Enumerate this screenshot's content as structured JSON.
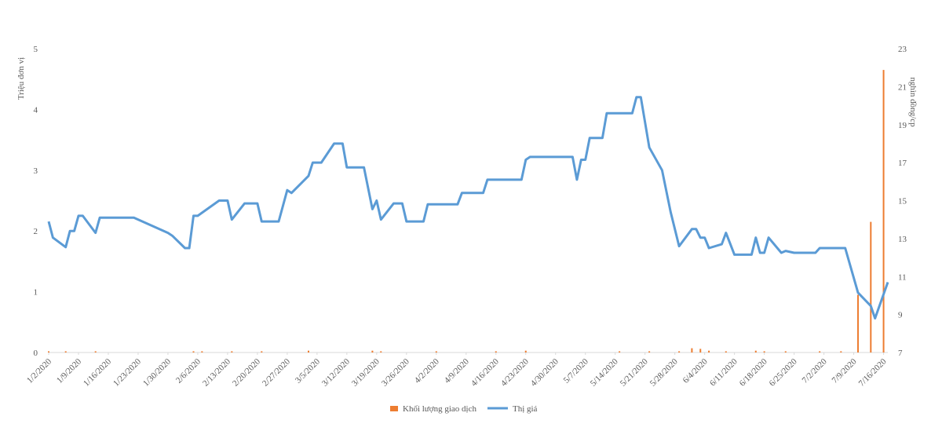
{
  "chart_data": {
    "type": "bar-line",
    "y_label": "Triệu đơn vị",
    "y2_label": "nghìn đồng/cp",
    "xlim": [
      "1/2/2020",
      "7/17/2020"
    ],
    "xticks": [
      "1/2/2020",
      "1/9/2020",
      "1/16/2020",
      "1/23/2020",
      "1/30/2020",
      "2/6/2020",
      "2/13/2020",
      "2/20/2020",
      "2/27/2020",
      "3/5/2020",
      "3/12/2020",
      "3/19/2020",
      "3/26/2020",
      "4/2/2020",
      "4/9/2020",
      "4/16/2020",
      "4/23/2020",
      "4/30/2020",
      "5/7/2020",
      "5/14/2020",
      "5/21/2020",
      "5/28/2020",
      "6/4/2020",
      "6/11/2020",
      "6/18/2020",
      "6/25/2020",
      "7/2/2020",
      "7/9/2020",
      "7/16/2020"
    ],
    "ylim": [
      0,
      5
    ],
    "yticks": [
      0,
      1,
      2,
      3,
      4,
      5
    ],
    "y2lim": [
      7,
      23
    ],
    "y2ticks": [
      7,
      9,
      11,
      13,
      15,
      17,
      19,
      21,
      23
    ],
    "series": [
      {
        "name": "Khối lượng giao dịch",
        "type": "bar",
        "color": "#ed7d31",
        "x": [
          "1/2/2020",
          "1/6/2020",
          "1/13/2020",
          "2/5/2020",
          "2/7/2020",
          "2/14/2020",
          "2/21/2020",
          "3/3/2020",
          "3/18/2020",
          "3/20/2020",
          "4/2/2020",
          "4/16/2020",
          "4/23/2020",
          "5/15/2020",
          "5/22/2020",
          "5/29/2020",
          "6/1/2020",
          "6/3/2020",
          "6/5/2020",
          "6/9/2020",
          "6/16/2020",
          "6/18/2020",
          "6/23/2020",
          "7/1/2020",
          "7/6/2020",
          "7/10/2020",
          "7/13/2020",
          "7/16/2020"
        ],
        "values": [
          0.02,
          0.02,
          0.02,
          0.02,
          0.02,
          0.02,
          0.02,
          0.03,
          0.03,
          0.02,
          0.02,
          0.02,
          0.03,
          0.02,
          0.02,
          0.02,
          0.07,
          0.06,
          0.03,
          0.02,
          0.03,
          0.02,
          0.02,
          0.02,
          0.02,
          0.95,
          2.15,
          4.65
        ]
      },
      {
        "name": "Thị giá",
        "type": "line",
        "axis": "y2",
        "color": "#5b9bd5",
        "x": [
          "1/2/2020",
          "1/3/2020",
          "1/6/2020",
          "1/7/2020",
          "1/8/2020",
          "1/9/2020",
          "1/10/2020",
          "1/13/2020",
          "1/14/2020",
          "1/22/2020",
          "1/30/2020",
          "1/31/2020",
          "2/3/2020",
          "2/4/2020",
          "2/5/2020",
          "2/6/2020",
          "2/11/2020",
          "2/13/2020",
          "2/14/2020",
          "2/17/2020",
          "2/20/2020",
          "2/21/2020",
          "2/25/2020",
          "2/27/2020",
          "2/28/2020",
          "3/3/2020",
          "3/4/2020",
          "3/6/2020",
          "3/9/2020",
          "3/11/2020",
          "3/12/2020",
          "3/16/2020",
          "3/18/2020",
          "3/19/2020",
          "3/20/2020",
          "3/23/2020",
          "3/25/2020",
          "3/26/2020",
          "3/30/2020",
          "3/31/2020",
          "4/7/2020",
          "4/8/2020",
          "4/13/2020",
          "4/14/2020",
          "4/22/2020",
          "4/23/2020",
          "4/24/2020",
          "5/4/2020",
          "5/5/2020",
          "5/6/2020",
          "5/7/2020",
          "5/8/2020",
          "5/11/2020",
          "5/12/2020",
          "5/18/2020",
          "5/19/2020",
          "5/20/2020",
          "5/22/2020",
          "5/25/2020",
          "5/27/2020",
          "5/29/2020",
          "6/1/2020",
          "6/2/2020",
          "6/3/2020",
          "6/4/2020",
          "6/5/2020",
          "6/8/2020",
          "6/9/2020",
          "6/11/2020",
          "6/15/2020",
          "6/16/2020",
          "6/17/2020",
          "6/18/2020",
          "6/19/2020",
          "6/22/2020",
          "6/23/2020",
          "6/25/2020",
          "6/30/2020",
          "7/1/2020",
          "7/7/2020",
          "7/10/2020",
          "7/13/2020",
          "7/14/2020",
          "7/17/2020"
        ],
        "values": [
          13.9,
          13.05,
          12.55,
          13.4,
          13.4,
          14.2,
          14.2,
          13.3,
          14.1,
          14.1,
          13.3,
          13.15,
          12.5,
          12.5,
          14.2,
          14.2,
          15.0,
          15.0,
          14.0,
          14.85,
          14.85,
          13.9,
          13.9,
          15.55,
          15.4,
          16.3,
          17.0,
          17.0,
          18.0,
          18.0,
          16.75,
          16.75,
          14.55,
          15.0,
          14.0,
          14.85,
          14.85,
          13.9,
          13.9,
          14.8,
          14.8,
          15.4,
          15.4,
          16.1,
          16.1,
          17.15,
          17.3,
          17.3,
          16.1,
          17.15,
          17.15,
          18.3,
          18.3,
          19.6,
          19.6,
          20.45,
          20.45,
          17.8,
          16.6,
          14.4,
          12.6,
          13.5,
          13.5,
          13.05,
          13.05,
          12.5,
          12.7,
          13.3,
          12.15,
          12.15,
          13.05,
          12.25,
          12.25,
          13.05,
          12.25,
          12.35,
          12.25,
          12.25,
          12.5,
          12.5,
          10.15,
          9.45,
          8.8,
          10.7
        ]
      }
    ]
  }
}
